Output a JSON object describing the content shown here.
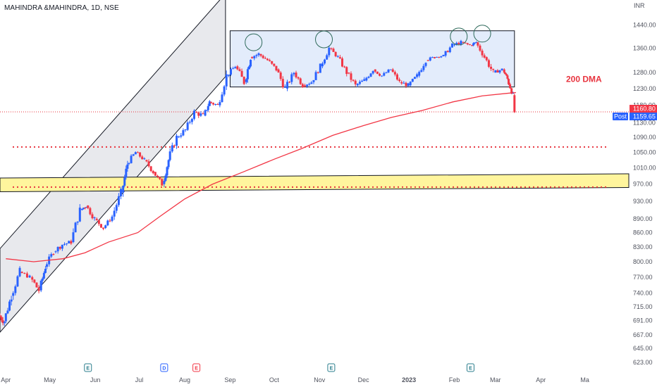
{
  "header": {
    "symbol_title": "MAHINDRA &MAHINDRA, 1D, NSE",
    "currency": "INR"
  },
  "chart_data": {
    "type": "candlestick",
    "title": "MAHINDRA &MAHINDRA, 1D, NSE",
    "y_unit": "INR",
    "y_ticks": [
      "1440.00",
      "1360.00",
      "1280.00",
      "1230.00",
      "1180.00",
      "1130.00",
      "1090.00",
      "1050.00",
      "1010.00",
      "970.00",
      "930.00",
      "890.00",
      "860.00",
      "830.00",
      "800.00",
      "770.00",
      "740.00",
      "715.00",
      "691.00",
      "667.00",
      "645.00",
      "623.00"
    ],
    "x_ticks": [
      "Apr",
      "May",
      "Jun",
      "Jul",
      "Aug",
      "Sep",
      "Oct",
      "Nov",
      "Dec",
      "2023",
      "Feb",
      "Mar",
      "Apr",
      "Ma"
    ],
    "x_range": [
      "2022-03-28",
      "2023-05-31"
    ],
    "y_range": [
      623,
      1475
    ],
    "y_scale": "log",
    "series": [
      {
        "name": "200 DMA",
        "color": "#f23645",
        "points": [
          [
            "2022-04-01",
            806
          ],
          [
            "2022-04-20",
            800
          ],
          [
            "2022-05-10",
            806
          ],
          [
            "2022-05-25",
            818
          ],
          [
            "2022-06-10",
            840
          ],
          [
            "2022-06-30",
            860
          ],
          [
            "2022-07-15",
            895
          ],
          [
            "2022-08-01",
            935
          ],
          [
            "2022-08-20",
            970
          ],
          [
            "2022-09-10",
            1000
          ],
          [
            "2022-10-01",
            1032
          ],
          [
            "2022-10-20",
            1060
          ],
          [
            "2022-11-10",
            1095
          ],
          [
            "2022-12-01",
            1122
          ],
          [
            "2022-12-20",
            1145
          ],
          [
            "2023-01-10",
            1165
          ],
          [
            "2023-01-31",
            1190
          ],
          [
            "2023-02-20",
            1208
          ],
          [
            "2023-03-10",
            1216
          ],
          [
            "2023-03-15",
            1218
          ]
        ]
      }
    ],
    "ohlc_summary": [
      [
        "2022-03-28",
        700,
        720,
        667,
        690
      ],
      [
        "2022-04-01",
        690,
        740,
        680,
        735
      ],
      [
        "2022-04-06",
        735,
        790,
        725,
        780
      ],
      [
        "2022-04-12",
        780,
        790,
        760,
        770
      ],
      [
        "2022-04-19",
        770,
        785,
        730,
        745
      ],
      [
        "2022-04-25",
        745,
        800,
        740,
        790
      ],
      [
        "2022-04-29",
        790,
        825,
        780,
        820
      ],
      [
        "2022-05-05",
        820,
        845,
        805,
        835
      ],
      [
        "2022-05-11",
        835,
        855,
        820,
        840
      ],
      [
        "2022-05-17",
        840,
        915,
        835,
        910
      ],
      [
        "2022-05-23",
        910,
        940,
        900,
        920
      ],
      [
        "2022-05-27",
        920,
        930,
        880,
        890
      ],
      [
        "2022-06-02",
        890,
        900,
        860,
        870
      ],
      [
        "2022-06-08",
        870,
        900,
        865,
        895
      ],
      [
        "2022-06-14",
        895,
        960,
        890,
        950
      ],
      [
        "2022-06-20",
        950,
        1030,
        945,
        1020
      ],
      [
        "2022-06-24",
        1020,
        1060,
        1010,
        1050
      ],
      [
        "2022-06-30",
        1050,
        1060,
        1020,
        1030
      ],
      [
        "2022-07-06",
        1030,
        1040,
        990,
        1000
      ],
      [
        "2022-07-12",
        1000,
        1010,
        960,
        970
      ],
      [
        "2022-07-18",
        970,
        1040,
        965,
        1030
      ],
      [
        "2022-07-22",
        1030,
        1100,
        1025,
        1090
      ],
      [
        "2022-07-28",
        1090,
        1130,
        1070,
        1110
      ],
      [
        "2022-08-03",
        1110,
        1170,
        1100,
        1160
      ],
      [
        "2022-08-09",
        1160,
        1190,
        1130,
        1150
      ],
      [
        "2022-08-15",
        1150,
        1200,
        1140,
        1190
      ],
      [
        "2022-08-19",
        1190,
        1220,
        1170,
        1180
      ],
      [
        "2022-08-25",
        1180,
        1280,
        1175,
        1270
      ],
      [
        "2022-08-31",
        1270,
        1310,
        1260,
        1300
      ],
      [
        "2022-09-06",
        1300,
        1320,
        1230,
        1250
      ],
      [
        "2022-09-12",
        1250,
        1340,
        1240,
        1330
      ],
      [
        "2022-09-16",
        1330,
        1375,
        1310,
        1340
      ],
      [
        "2022-09-22",
        1340,
        1350,
        1300,
        1320
      ],
      [
        "2022-09-28",
        1320,
        1330,
        1270,
        1290
      ],
      [
        "2022-10-04",
        1290,
        1300,
        1210,
        1230
      ],
      [
        "2022-10-10",
        1230,
        1290,
        1220,
        1280
      ],
      [
        "2022-10-16",
        1280,
        1290,
        1230,
        1240
      ],
      [
        "2022-10-22",
        1240,
        1260,
        1215,
        1250
      ],
      [
        "2022-10-28",
        1250,
        1310,
        1240,
        1300
      ],
      [
        "2022-11-03",
        1300,
        1375,
        1290,
        1360
      ],
      [
        "2022-11-09",
        1360,
        1370,
        1320,
        1330
      ],
      [
        "2022-11-15",
        1330,
        1340,
        1270,
        1280
      ],
      [
        "2022-11-21",
        1280,
        1290,
        1225,
        1240
      ],
      [
        "2022-11-27",
        1240,
        1270,
        1215,
        1255
      ],
      [
        "2022-12-03",
        1255,
        1310,
        1245,
        1290
      ],
      [
        "2022-12-09",
        1290,
        1300,
        1250,
        1270
      ],
      [
        "2022-12-15",
        1270,
        1300,
        1260,
        1290
      ],
      [
        "2022-12-21",
        1290,
        1295,
        1240,
        1250
      ],
      [
        "2022-12-27",
        1250,
        1270,
        1220,
        1240
      ],
      [
        "2023-01-02",
        1240,
        1280,
        1230,
        1270
      ],
      [
        "2023-01-08",
        1270,
        1330,
        1260,
        1320
      ],
      [
        "2023-01-14",
        1320,
        1340,
        1300,
        1330
      ],
      [
        "2023-01-20",
        1330,
        1345,
        1320,
        1335
      ],
      [
        "2023-01-26",
        1335,
        1380,
        1325,
        1370
      ],
      [
        "2023-02-01",
        1370,
        1395,
        1350,
        1380
      ],
      [
        "2023-02-07",
        1380,
        1390,
        1360,
        1370
      ],
      [
        "2023-02-13",
        1370,
        1395,
        1360,
        1380
      ],
      [
        "2023-02-17",
        1380,
        1385,
        1320,
        1330
      ],
      [
        "2023-02-23",
        1330,
        1340,
        1260,
        1280
      ],
      [
        "2023-03-01",
        1280,
        1300,
        1260,
        1290
      ],
      [
        "2023-03-07",
        1290,
        1300,
        1250,
        1260
      ],
      [
        "2023-03-10",
        1260,
        1265,
        1200,
        1210
      ],
      [
        "2023-03-14",
        1210,
        1215,
        1159,
        1160
      ]
    ],
    "annotations": {
      "last_price": "1160.80",
      "post_label": "Post",
      "post_price": "1159.65",
      "dma_label": "200 DMA",
      "dotted_levels": [
        1064,
        963
      ],
      "support_zone": [
        952,
        985
      ],
      "range_box": [
        1235,
        1420
      ],
      "event_markers": [
        "E",
        "D",
        "E",
        "E",
        "E"
      ]
    },
    "grid": false,
    "legend": "none"
  },
  "colors": {
    "up": "#089981",
    "down": "#f23645",
    "up_candle": "#2962ff",
    "dma": "#f23645",
    "zone_fill": "#fff59d",
    "box_fill": "#e3ecfb",
    "channel_fill": "#e8e9ed",
    "post_badge": "#2962ff",
    "last_badge": "#f23645"
  }
}
